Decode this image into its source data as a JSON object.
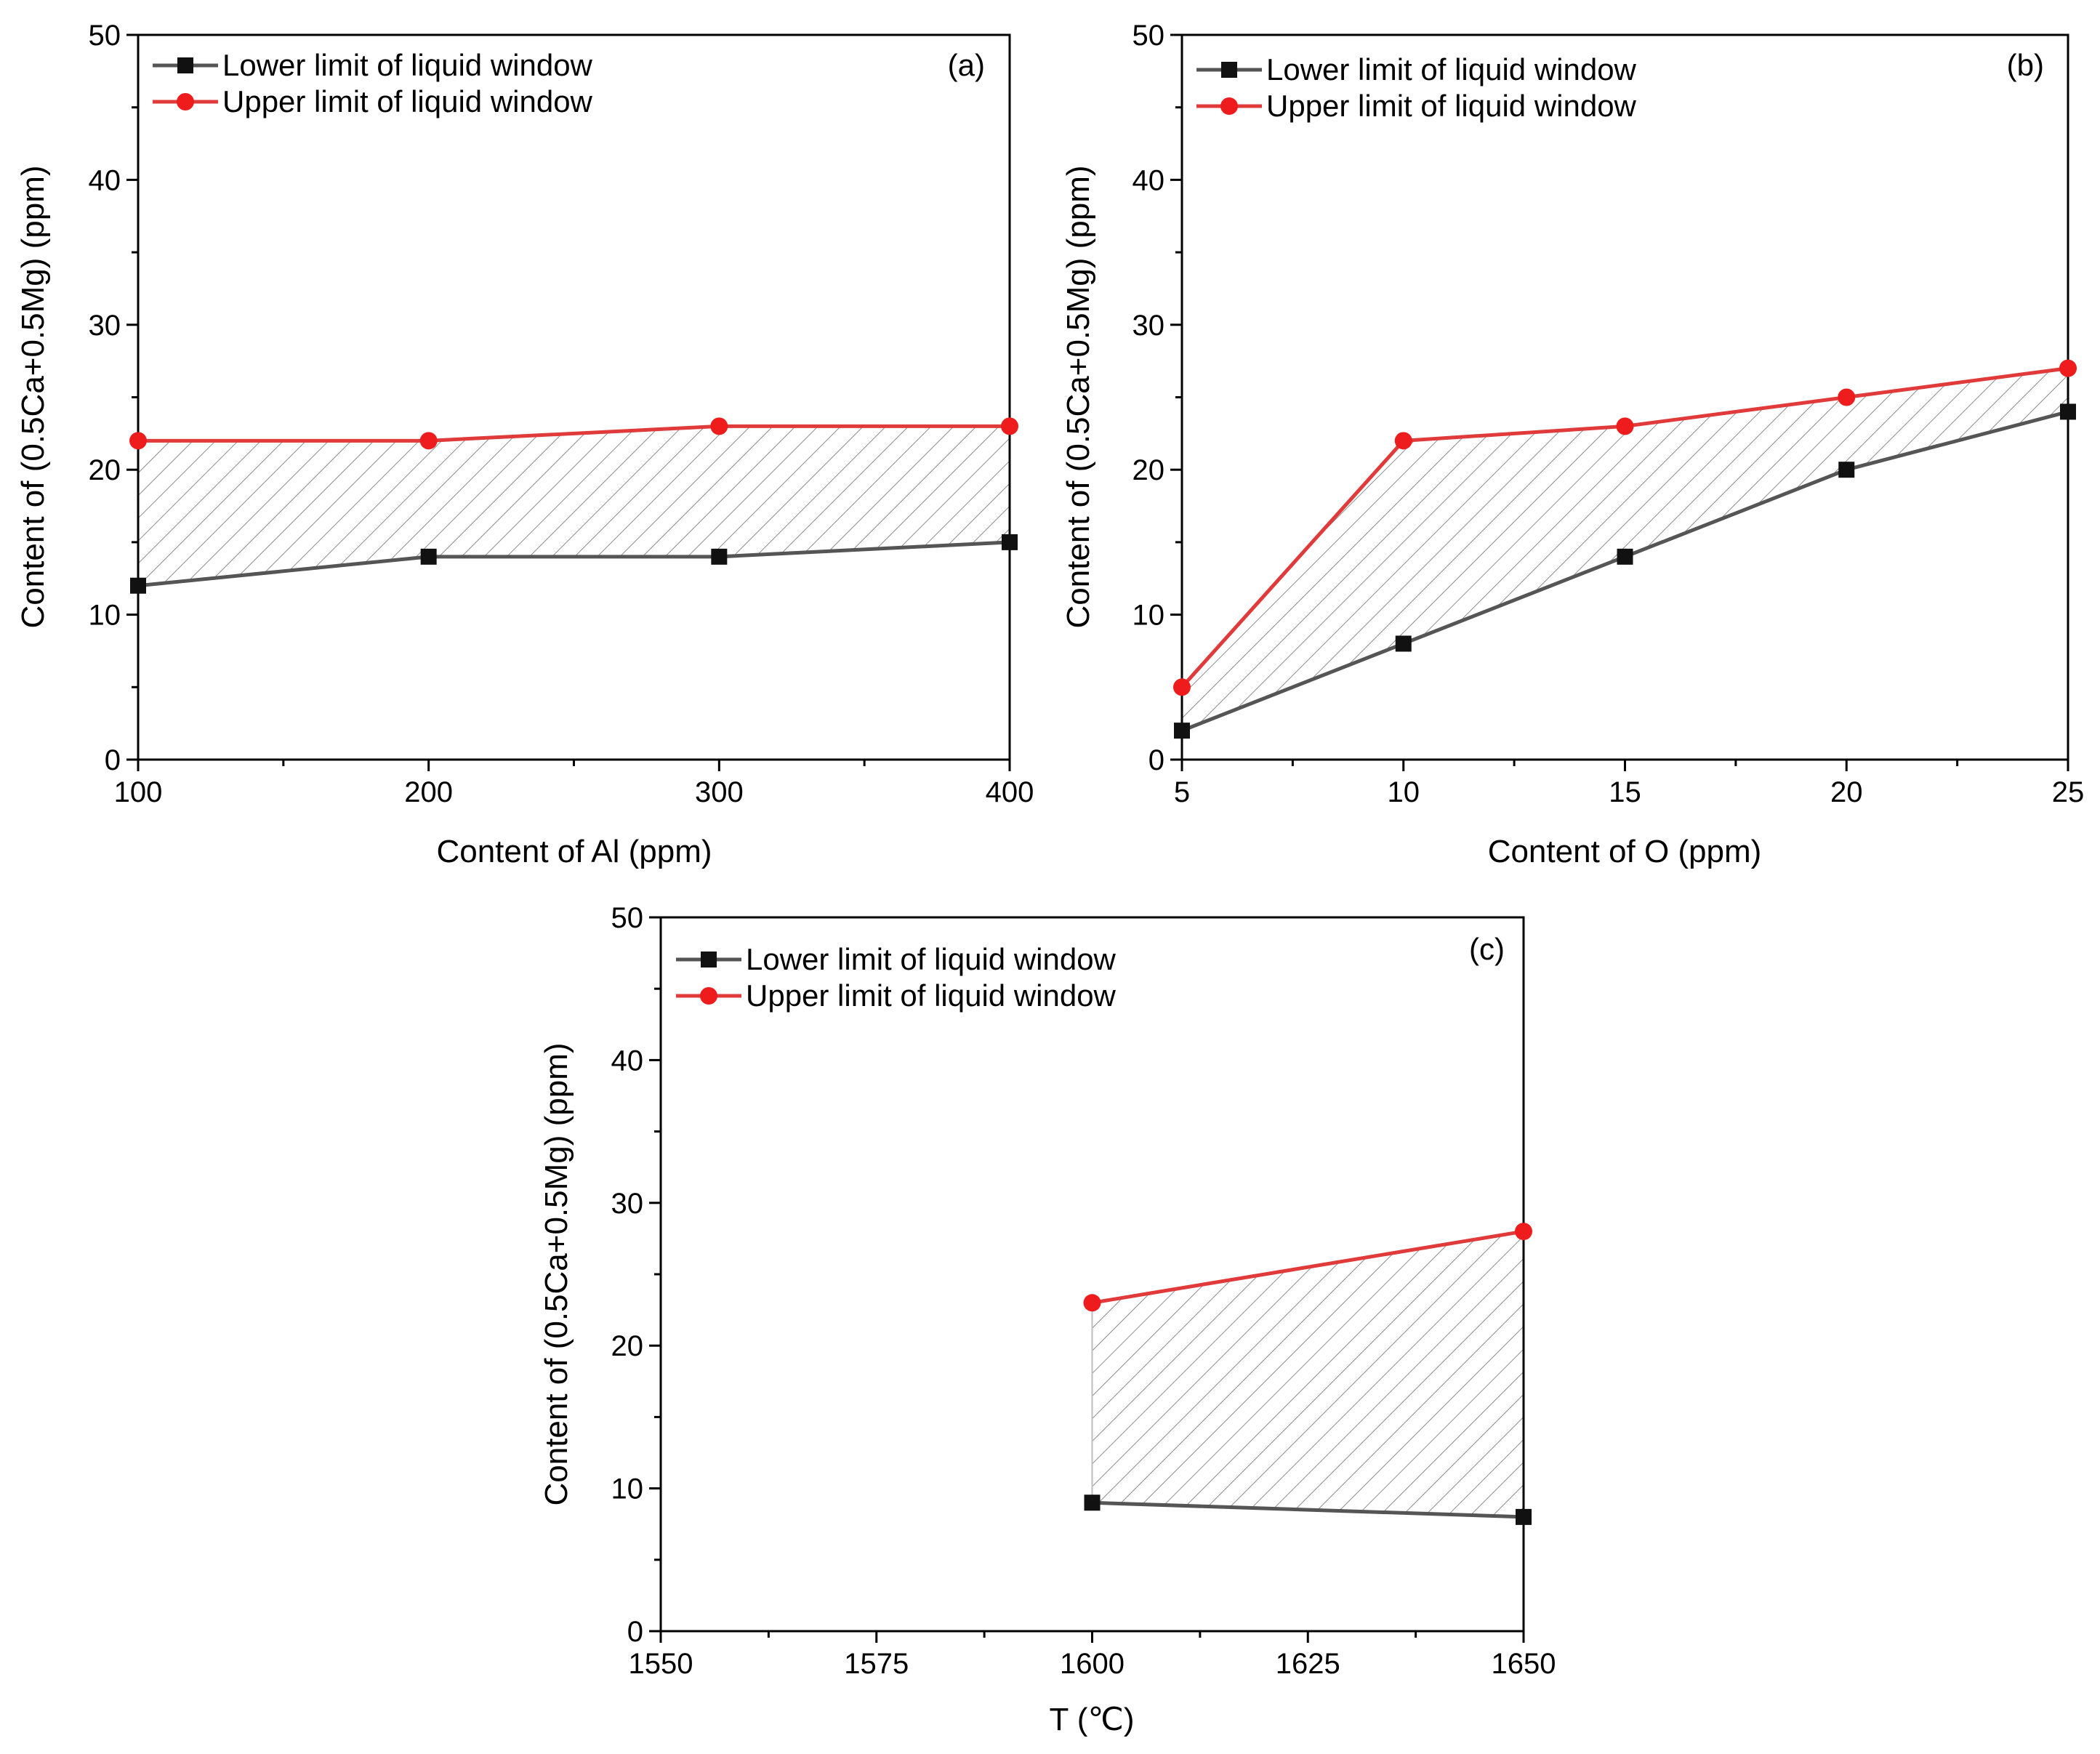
{
  "chart_data": [
    {
      "type": "line",
      "panel_label": "(a)",
      "xlabel": "Content of Al (ppm)",
      "ylabel": "Content of (0.5Ca+0.5Mg) (ppm)",
      "xlim": [
        100,
        400
      ],
      "ylim": [
        0,
        50
      ],
      "x_ticks": [
        100,
        200,
        300,
        400
      ],
      "x_tick_labels": [
        "100",
        "200",
        "300",
        "400"
      ],
      "x_minor_ticks": [
        150,
        250,
        350
      ],
      "y_ticks": [
        0,
        10,
        20,
        30,
        40,
        50
      ],
      "y_tick_labels": [
        "0",
        "10",
        "20",
        "30",
        "40",
        "50"
      ],
      "y_minor_ticks": [
        5,
        15,
        25,
        35,
        45
      ],
      "fill_between": "hatched region between lower and upper limit",
      "legend_position": "top-left",
      "x": [
        100,
        200,
        300,
        400
      ],
      "series": [
        {
          "name": "Lower limit of liquid window",
          "values": [
            12,
            14,
            14,
            15
          ],
          "color": "#555555",
          "marker": "square"
        },
        {
          "name": "Upper limit of liquid window",
          "values": [
            22,
            22,
            23,
            23
          ],
          "color": "#e03a3a",
          "marker": "circle"
        }
      ]
    },
    {
      "type": "line",
      "panel_label": "(b)",
      "xlabel": "Content of O  (ppm)",
      "ylabel": "Content of  (0.5Ca+0.5Mg)  (ppm)",
      "xlim": [
        5,
        25
      ],
      "ylim": [
        0,
        50
      ],
      "x_ticks": [
        5,
        10,
        15,
        20,
        25
      ],
      "x_tick_labels": [
        "5",
        "10",
        "15",
        "20",
        "25"
      ],
      "x_minor_ticks": [
        7.5,
        12.5,
        17.5,
        22.5
      ],
      "y_ticks": [
        0,
        10,
        20,
        30,
        40,
        50
      ],
      "y_tick_labels": [
        "0",
        "10",
        "20",
        "30",
        "40",
        "50"
      ],
      "y_minor_ticks": [
        5,
        15,
        25,
        35,
        45
      ],
      "fill_between": "hatched region between lower and upper limit",
      "legend_position": "top-left",
      "x": [
        5,
        10,
        15,
        20,
        25
      ],
      "series": [
        {
          "name": "Lower limit of liquid window",
          "values": [
            2,
            8,
            14,
            20,
            24
          ],
          "color": "#555555",
          "marker": "square"
        },
        {
          "name": "Upper limit of liquid window",
          "values": [
            5,
            22,
            23,
            25,
            27
          ],
          "color": "#e03a3a",
          "marker": "circle"
        }
      ]
    },
    {
      "type": "line",
      "panel_label": "(c)",
      "xlabel": "T (℃)",
      "ylabel": "Content of (0.5Ca+0.5Mg) (ppm)",
      "xlim": [
        1550,
        1650
      ],
      "ylim": [
        0,
        50
      ],
      "x_ticks": [
        1550,
        1575,
        1600,
        1625,
        1650
      ],
      "x_tick_labels": [
        "1550",
        "1575",
        "1600",
        "1625",
        "1650"
      ],
      "x_minor_ticks": [
        1562.5,
        1587.5,
        1612.5,
        1637.5
      ],
      "y_ticks": [
        0,
        10,
        20,
        30,
        40,
        50
      ],
      "y_tick_labels": [
        "0",
        "10",
        "20",
        "30",
        "40",
        "50"
      ],
      "y_minor_ticks": [
        5,
        15,
        25,
        35,
        45
      ],
      "fill_between": "hatched region between lower and upper limit",
      "legend_position": "top-left",
      "x": [
        1600,
        1650
      ],
      "series": [
        {
          "name": "Lower limit of liquid window",
          "values": [
            9,
            8
          ],
          "color": "#555555",
          "marker": "square"
        },
        {
          "name": "Upper limit of liquid window",
          "values": [
            23,
            28
          ],
          "color": "#e03a3a",
          "marker": "circle"
        }
      ]
    }
  ]
}
